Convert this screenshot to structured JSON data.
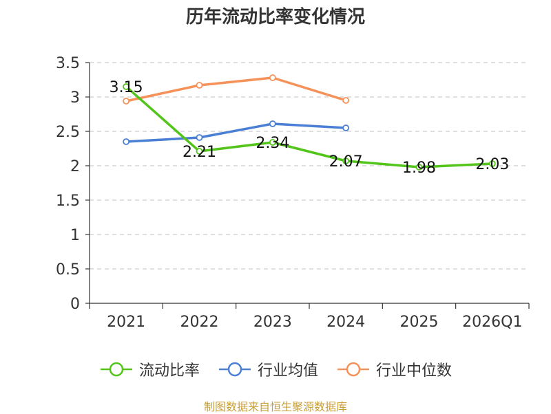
{
  "chart_data": {
    "type": "line",
    "title": "历年流动比率变化情况",
    "categories": [
      "2021",
      "2022",
      "2023",
      "2024",
      "2025",
      "2026Q1"
    ],
    "ylim": [
      0,
      3.5
    ],
    "yticks": [
      0,
      0.5,
      1,
      1.5,
      2,
      2.5,
      3,
      3.5
    ],
    "ytick_labels": [
      "0",
      "0.5",
      "1",
      "1.5",
      "2",
      "2.5",
      "3",
      "3.5"
    ],
    "grid": true,
    "legend_position": "bottom",
    "series": [
      {
        "name": "流动比率",
        "color": "#52c41a",
        "values": [
          3.15,
          2.21,
          2.34,
          2.07,
          1.98,
          2.03
        ],
        "labels": [
          "3.15",
          "2.21",
          "2.34",
          "2.07",
          "1.98",
          "2.03"
        ],
        "show_labels": true
      },
      {
        "name": "行业均值",
        "color": "#4a7fd4",
        "values": [
          2.35,
          2.41,
          2.61,
          2.55,
          null,
          null
        ],
        "show_labels": false
      },
      {
        "name": "行业中位数",
        "color": "#f5925a",
        "values": [
          2.94,
          3.17,
          3.28,
          2.95,
          null,
          null
        ],
        "show_labels": false
      }
    ]
  },
  "source": "制图数据来自恒生聚源数据库"
}
